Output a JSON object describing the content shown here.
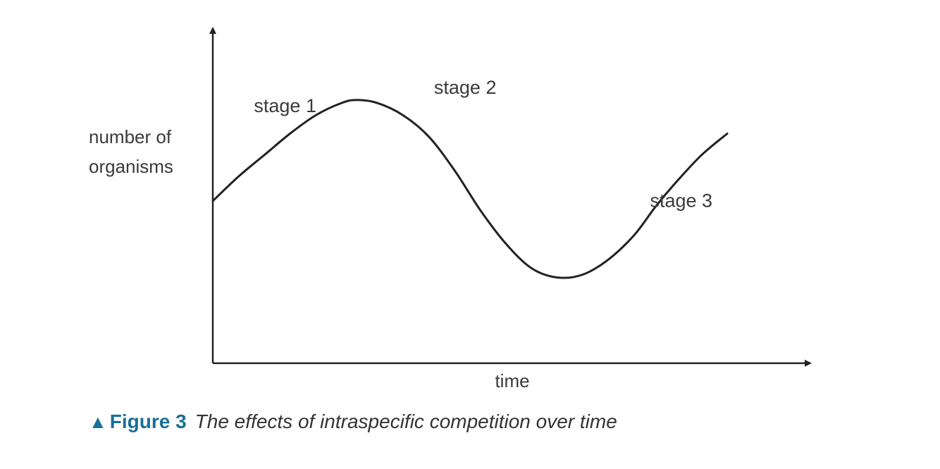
{
  "chart_data": {
    "type": "line",
    "ylabel_lines": [
      "number of",
      "organisms"
    ],
    "xlabel": "time",
    "xlim": [
      0,
      100
    ],
    "ylim": [
      0,
      100
    ],
    "series": [
      {
        "x": [
          0,
          5,
          10,
          15,
          20,
          25,
          28,
          32,
          37,
          42,
          47,
          52,
          57,
          62,
          67,
          72,
          77,
          82,
          86,
          90,
          95,
          100
        ],
        "y": [
          53,
          61,
          68,
          75,
          81,
          85,
          86,
          85,
          81,
          74,
          63,
          50,
          39,
          31,
          28,
          29,
          34,
          42,
          51,
          59,
          68,
          75
        ]
      }
    ],
    "annotations": [
      {
        "text": "stage 1",
        "x": 8,
        "y": 82
      },
      {
        "text": "stage 2",
        "x": 43,
        "y": 88
      },
      {
        "text": "stage 3",
        "x": 85,
        "y": 51
      }
    ],
    "grid": false
  },
  "caption": {
    "marker_icon": "triangle-up-icon",
    "figure_label": "Figure 3",
    "title": "The effects of intraspecific competition over time",
    "color": "#1a6f97"
  }
}
